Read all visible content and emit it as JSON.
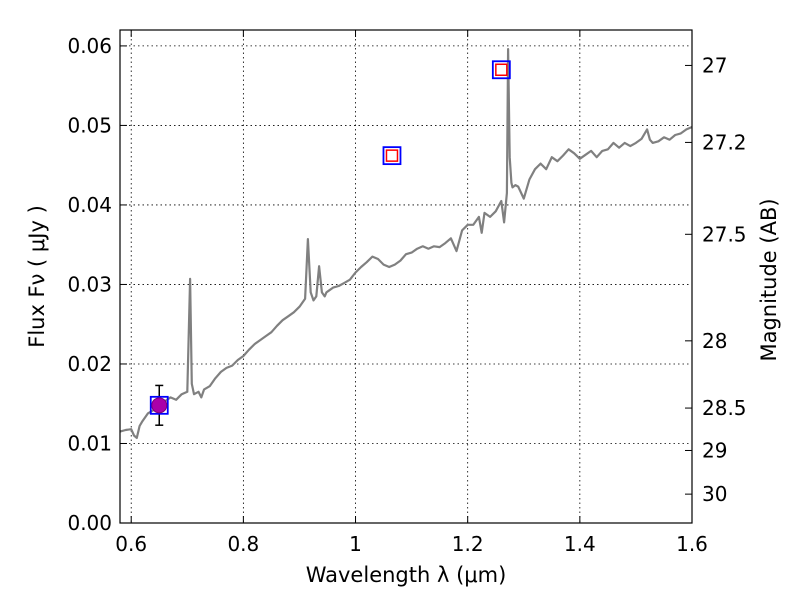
{
  "chart_data": {
    "type": "line",
    "xlabel": "Wavelength  λ (μm)",
    "ylabel": "Flux  Fν  ( μJy )",
    "y2label": "Magnitude (AB)",
    "xlim": [
      0.58,
      1.6
    ],
    "ylim": [
      0.0,
      0.062
    ],
    "grid": true,
    "x_ticks": [
      {
        "value": 0.6,
        "label": "0.6"
      },
      {
        "value": 0.8,
        "label": "0.8"
      },
      {
        "value": 1.0,
        "label": "1"
      },
      {
        "value": 1.2,
        "label": "1.2"
      },
      {
        "value": 1.4,
        "label": "1.4"
      },
      {
        "value": 1.6,
        "label": "1.6"
      }
    ],
    "y_ticks": [
      {
        "value": 0.0,
        "label": "0.00"
      },
      {
        "value": 0.01,
        "label": "0.01"
      },
      {
        "value": 0.02,
        "label": "0.02"
      },
      {
        "value": 0.03,
        "label": "0.03"
      },
      {
        "value": 0.04,
        "label": "0.04"
      },
      {
        "value": 0.05,
        "label": "0.05"
      },
      {
        "value": 0.06,
        "label": "0.06"
      }
    ],
    "y2_ticks": [
      {
        "mag": 27,
        "label": "27"
      },
      {
        "mag": 27.2,
        "label": "27.2"
      },
      {
        "mag": 27.5,
        "label": "27.5"
      },
      {
        "mag": 28,
        "label": "28"
      },
      {
        "mag": 28.5,
        "label": "28.5"
      },
      {
        "mag": 29,
        "label": "29"
      },
      {
        "mag": 30,
        "label": "30"
      }
    ],
    "spectrum": {
      "color": "#808080",
      "x": [
        0.58,
        0.59,
        0.6,
        0.605,
        0.61,
        0.615,
        0.62,
        0.63,
        0.64,
        0.65,
        0.66,
        0.67,
        0.68,
        0.69,
        0.7,
        0.705,
        0.708,
        0.712,
        0.72,
        0.725,
        0.73,
        0.74,
        0.75,
        0.76,
        0.77,
        0.78,
        0.79,
        0.8,
        0.81,
        0.82,
        0.83,
        0.84,
        0.85,
        0.86,
        0.87,
        0.88,
        0.89,
        0.9,
        0.91,
        0.915,
        0.92,
        0.925,
        0.93,
        0.935,
        0.94,
        0.945,
        0.948,
        0.952,
        0.96,
        0.97,
        0.98,
        0.99,
        1.0,
        1.01,
        1.02,
        1.03,
        1.04,
        1.05,
        1.06,
        1.07,
        1.08,
        1.09,
        1.1,
        1.11,
        1.12,
        1.13,
        1.14,
        1.15,
        1.16,
        1.17,
        1.18,
        1.19,
        1.2,
        1.21,
        1.22,
        1.225,
        1.23,
        1.24,
        1.25,
        1.26,
        1.265,
        1.27,
        1.272,
        1.275,
        1.278,
        1.28,
        1.285,
        1.29,
        1.3,
        1.31,
        1.32,
        1.33,
        1.34,
        1.35,
        1.36,
        1.37,
        1.38,
        1.39,
        1.4,
        1.41,
        1.42,
        1.43,
        1.44,
        1.45,
        1.46,
        1.47,
        1.48,
        1.49,
        1.5,
        1.51,
        1.52,
        1.525,
        1.53,
        1.54,
        1.55,
        1.56,
        1.57,
        1.58,
        1.59,
        1.6
      ],
      "y": [
        0.0115,
        0.0117,
        0.0118,
        0.011,
        0.0107,
        0.0122,
        0.0128,
        0.0138,
        0.0142,
        0.0148,
        0.0153,
        0.0158,
        0.0155,
        0.0162,
        0.0165,
        0.0307,
        0.0175,
        0.0162,
        0.0165,
        0.0158,
        0.0168,
        0.0172,
        0.0182,
        0.019,
        0.0195,
        0.0198,
        0.0205,
        0.021,
        0.0218,
        0.0225,
        0.023,
        0.0235,
        0.024,
        0.0248,
        0.0255,
        0.026,
        0.0265,
        0.0272,
        0.0282,
        0.0357,
        0.029,
        0.028,
        0.0285,
        0.0323,
        0.029,
        0.0285,
        0.029,
        0.0292,
        0.0296,
        0.0298,
        0.0302,
        0.0306,
        0.0315,
        0.0322,
        0.0328,
        0.0335,
        0.0332,
        0.0325,
        0.0322,
        0.0325,
        0.033,
        0.0338,
        0.034,
        0.0345,
        0.0348,
        0.0345,
        0.0348,
        0.0347,
        0.0352,
        0.0358,
        0.0342,
        0.0368,
        0.0375,
        0.0375,
        0.0385,
        0.0365,
        0.039,
        0.0385,
        0.0392,
        0.0405,
        0.0378,
        0.0415,
        0.0596,
        0.046,
        0.0428,
        0.0422,
        0.0425,
        0.0423,
        0.0408,
        0.0432,
        0.0445,
        0.0452,
        0.0445,
        0.046,
        0.0455,
        0.0462,
        0.047,
        0.0465,
        0.0458,
        0.0463,
        0.0468,
        0.046,
        0.0468,
        0.047,
        0.0478,
        0.0472,
        0.0478,
        0.0474,
        0.0478,
        0.0483,
        0.0495,
        0.0482,
        0.0478,
        0.048,
        0.0485,
        0.0482,
        0.0488,
        0.049,
        0.0495,
        0.0498
      ]
    },
    "photometry": [
      {
        "x": 1.065,
        "y": 0.0462,
        "model_color": "#0000ff",
        "data_color": "#ff0000"
      },
      {
        "x": 1.26,
        "y": 0.057,
        "model_color": "#0000ff",
        "data_color": "#ff0000"
      },
      {
        "x": 0.65,
        "y": 0.0148,
        "model_color": "#0000ff",
        "data_color": "#aa00aa",
        "filled": true,
        "yerr": 0.0025
      }
    ]
  }
}
